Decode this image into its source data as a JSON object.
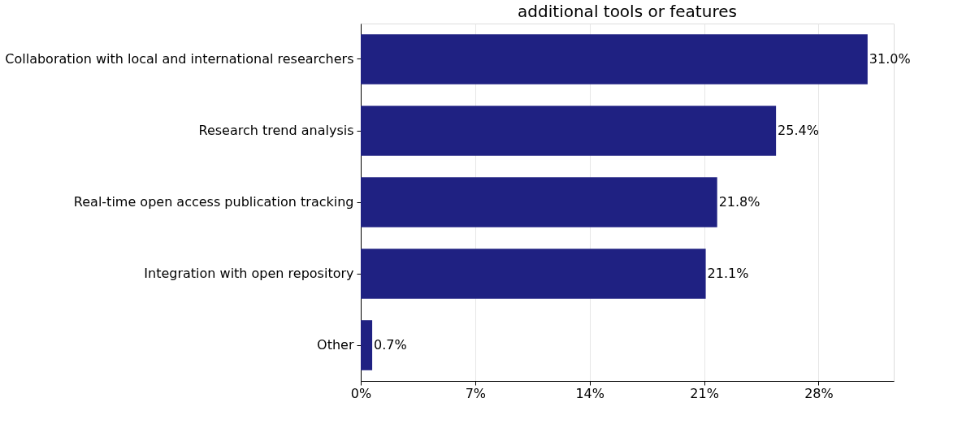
{
  "chart_data": {
    "type": "bar",
    "orientation": "horizontal",
    "title": "additional tools or features",
    "categories": [
      "Collaboration with local and international researchers",
      "Research trend analysis",
      "Real-time open access publication tracking",
      "Integration with open repository",
      "Other"
    ],
    "values": [
      31.0,
      25.4,
      21.8,
      21.1,
      0.7
    ],
    "value_labels": [
      "31.0%",
      "25.4%",
      "21.8%",
      "21.1%",
      "0.7%"
    ],
    "color": "#1f2182",
    "xlim": [
      0,
      32.6
    ],
    "xticks": [
      {
        "value": 0,
        "label": "0%"
      },
      {
        "value": 7,
        "label": "7%"
      },
      {
        "value": 14,
        "label": "14%"
      },
      {
        "value": 21,
        "label": "21%"
      },
      {
        "value": 28,
        "label": "28%"
      }
    ],
    "grid": "x"
  }
}
